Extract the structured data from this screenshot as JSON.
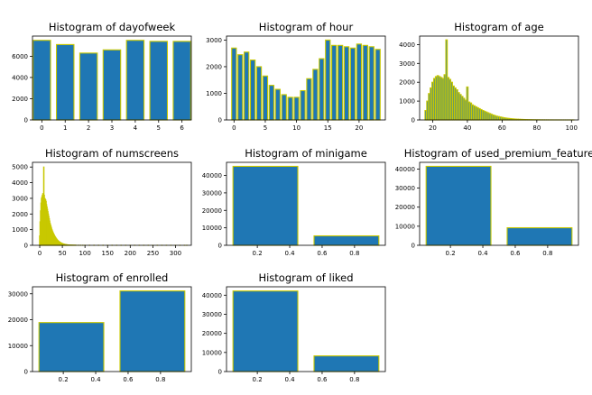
{
  "chart_data": [
    {
      "type": "bar",
      "title": "Histogram of dayofweek",
      "x": [
        0,
        1,
        2,
        3,
        4,
        5,
        6
      ],
      "values": [
        7500,
        7100,
        6300,
        6600,
        7500,
        7400,
        7400
      ],
      "bar_width": 0.75,
      "xlim": [
        -0.4,
        6.4
      ],
      "ylim": [
        0,
        7900
      ],
      "xticks": [
        0,
        1,
        2,
        3,
        4,
        5,
        6
      ],
      "yticks": [
        0,
        2000,
        4000,
        6000
      ],
      "bar_color": "#1f77b4",
      "edge_color": "#c8c800"
    },
    {
      "type": "bar",
      "title": "Histogram of hour",
      "x": [
        0,
        1,
        2,
        3,
        4,
        5,
        6,
        7,
        8,
        9,
        10,
        11,
        12,
        13,
        14,
        15,
        16,
        17,
        18,
        19,
        20,
        21,
        22,
        23
      ],
      "values": [
        2700,
        2450,
        2550,
        2250,
        2000,
        1650,
        1300,
        1150,
        950,
        850,
        850,
        1100,
        1550,
        1900,
        2300,
        3000,
        2800,
        2800,
        2750,
        2700,
        2850,
        2800,
        2750,
        2650
      ],
      "bar_width": 0.75,
      "xlim": [
        -1.2,
        24.2
      ],
      "ylim": [
        0,
        3150
      ],
      "xticks": [
        0,
        5,
        10,
        15,
        20
      ],
      "yticks": [
        0,
        1000,
        2000,
        3000
      ],
      "bar_color": "#1f77b4",
      "edge_color": "#c8c800"
    },
    {
      "type": "bar",
      "title": "Histogram of age",
      "x": [
        16,
        17,
        18,
        19,
        20,
        21,
        22,
        23,
        24,
        25,
        26,
        27,
        28,
        29,
        30,
        31,
        32,
        33,
        34,
        35,
        36,
        37,
        38,
        39,
        40,
        41,
        42,
        43,
        44,
        45,
        46,
        47,
        48,
        49,
        50,
        51,
        52,
        53,
        54,
        55,
        56,
        57,
        58,
        59,
        60,
        61,
        62,
        63,
        64,
        65,
        66,
        67,
        68,
        69,
        70,
        71,
        72,
        73,
        74,
        75,
        76,
        77,
        78,
        79,
        80,
        81,
        82,
        83,
        84,
        85,
        86,
        87,
        88,
        89,
        90,
        91,
        92,
        93,
        94,
        95,
        96,
        97,
        98,
        99,
        100,
        101
      ],
      "values": [
        500,
        1000,
        1400,
        1700,
        2000,
        2200,
        2300,
        2350,
        2300,
        2250,
        2200,
        2400,
        4250,
        2250,
        2150,
        2000,
        1800,
        1700,
        1600,
        1450,
        1350,
        1250,
        1150,
        1050,
        1750,
        950,
        900,
        800,
        750,
        700,
        650,
        600,
        550,
        500,
        460,
        420,
        380,
        340,
        300,
        260,
        230,
        200,
        180,
        160,
        140,
        120,
        105,
        90,
        80,
        70,
        60,
        52,
        45,
        40,
        35,
        30,
        26,
        22,
        19,
        16,
        14,
        12,
        10,
        9,
        8,
        7,
        6,
        5,
        5,
        4,
        4,
        3,
        3,
        3,
        2,
        2,
        2,
        2,
        1,
        1,
        1,
        1,
        1,
        1,
        1,
        1
      ],
      "bar_width": 0.85,
      "xlim": [
        12.5,
        104
      ],
      "ylim": [
        0,
        4450
      ],
      "xticks": [
        20,
        40,
        60,
        80,
        100
      ],
      "yticks": [
        0,
        1000,
        2000,
        3000,
        4000
      ],
      "bar_color": "#1f77b4",
      "edge_color": "#c8c800"
    },
    {
      "type": "bar",
      "title": "Histogram of numscreens",
      "x": [
        0,
        1,
        2,
        3,
        4,
        5,
        6,
        7,
        8,
        9,
        10,
        11,
        12,
        13,
        14,
        15,
        16,
        17,
        18,
        19,
        20,
        21,
        22,
        23,
        24,
        25,
        26,
        27,
        28,
        29,
        30,
        31,
        32,
        33,
        34,
        35,
        36,
        37,
        38,
        39,
        40,
        41,
        42,
        43,
        44,
        45,
        46,
        47,
        48,
        49,
        50,
        51,
        52,
        53,
        54,
        55,
        56,
        57,
        58,
        59,
        60,
        62,
        64,
        66,
        68,
        70,
        72,
        74,
        76,
        78,
        80,
        85,
        90,
        95,
        100,
        110,
        120,
        130,
        140,
        150,
        160,
        170,
        180,
        190,
        200,
        210,
        220,
        230,
        240,
        250,
        260,
        270,
        280,
        290,
        300,
        310,
        320,
        325
      ],
      "values": [
        600,
        1500,
        2200,
        2700,
        3000,
        3100,
        3200,
        3300,
        3200,
        5000,
        3200,
        3000,
        2950,
        2900,
        2800,
        2600,
        2450,
        2300,
        2150,
        2000,
        1850,
        1700,
        1550,
        1400,
        1300,
        1200,
        1100,
        1000,
        920,
        850,
        780,
        720,
        660,
        600,
        550,
        500,
        460,
        420,
        380,
        340,
        310,
        280,
        250,
        230,
        210,
        190,
        170,
        155,
        140,
        125,
        110,
        100,
        90,
        80,
        72,
        64,
        57,
        50,
        45,
        40,
        36,
        30,
        26,
        22,
        19,
        16,
        14,
        12,
        10,
        9,
        8,
        6,
        5,
        4,
        4,
        3,
        3,
        2,
        2,
        2,
        2,
        2,
        1,
        1,
        1,
        1,
        1,
        1,
        1,
        1,
        1,
        1,
        1,
        1,
        1,
        1,
        1,
        1
      ],
      "bar_width": 0.9,
      "xlim": [
        -16,
        335
      ],
      "ylim": [
        0,
        5300
      ],
      "xticks": [
        0,
        50,
        100,
        150,
        200,
        250,
        300
      ],
      "yticks": [
        0,
        1000,
        2000,
        3000,
        4000,
        5000
      ],
      "bar_color": "#1f77b4",
      "edge_color": "#c8c800"
    },
    {
      "type": "bar",
      "title": "Histogram of minigame",
      "x": [
        0.25,
        0.75
      ],
      "values": [
        45200,
        5400
      ],
      "bar_width": 0.4,
      "xlim": [
        0.01,
        0.99
      ],
      "ylim": [
        0,
        47500
      ],
      "xticks": [
        0.2,
        0.4,
        0.6,
        0.8
      ],
      "yticks": [
        0,
        10000,
        20000,
        30000,
        40000
      ],
      "bar_color": "#1f77b4",
      "edge_color": "#c8c800"
    },
    {
      "type": "bar",
      "title": "Histogram of used_premium_feature",
      "x": [
        0.25,
        0.75
      ],
      "values": [
        41400,
        9200
      ],
      "bar_width": 0.4,
      "xlim": [
        0.01,
        0.99
      ],
      "ylim": [
        0,
        43500
      ],
      "xticks": [
        0.2,
        0.4,
        0.6,
        0.8
      ],
      "yticks": [
        0,
        10000,
        20000,
        30000,
        40000
      ],
      "bar_color": "#1f77b4",
      "edge_color": "#c8c800"
    },
    {
      "type": "bar",
      "title": "Histogram of enrolled",
      "x": [
        0.25,
        0.75
      ],
      "values": [
        18900,
        31100
      ],
      "bar_width": 0.4,
      "xlim": [
        0.01,
        0.99
      ],
      "ylim": [
        0,
        32700
      ],
      "xticks": [
        0.2,
        0.4,
        0.6,
        0.8
      ],
      "yticks": [
        0,
        10000,
        20000,
        30000
      ],
      "bar_color": "#1f77b4",
      "edge_color": "#c8c800"
    },
    {
      "type": "bar",
      "title": "Histogram of liked",
      "x": [
        0.25,
        0.75
      ],
      "values": [
        42200,
        8200
      ],
      "bar_width": 0.4,
      "xlim": [
        0.01,
        0.99
      ],
      "ylim": [
        0,
        44400
      ],
      "xticks": [
        0.2,
        0.4,
        0.6,
        0.8
      ],
      "yticks": [
        0,
        10000,
        20000,
        30000,
        40000
      ],
      "bar_color": "#1f77b4",
      "edge_color": "#c8c800"
    }
  ]
}
